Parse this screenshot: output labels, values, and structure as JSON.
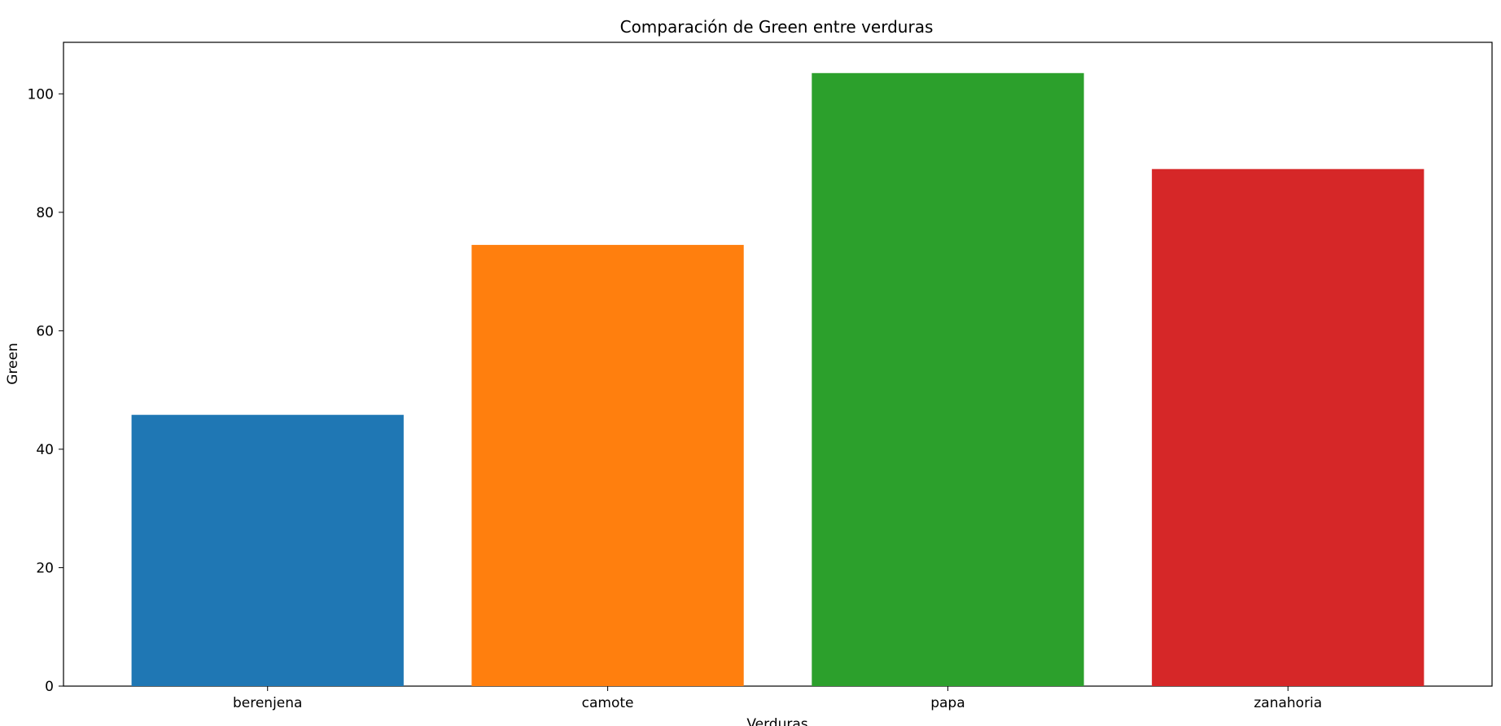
{
  "chart_data": {
    "type": "bar",
    "title": "Comparación de Green entre verduras",
    "xlabel": "Verduras",
    "ylabel": "Green",
    "categories": [
      "berenjena",
      "camote",
      "papa",
      "zanahoria"
    ],
    "values": [
      45.8,
      74.5,
      103.5,
      87.3
    ],
    "colors": [
      "#1f77b4",
      "#ff7f0e",
      "#2ca02c",
      "#d62728"
    ],
    "ylim": [
      0,
      108.7
    ],
    "yticks": [
      0,
      20,
      40,
      60,
      80,
      100
    ],
    "grid": false,
    "legend": false
  }
}
